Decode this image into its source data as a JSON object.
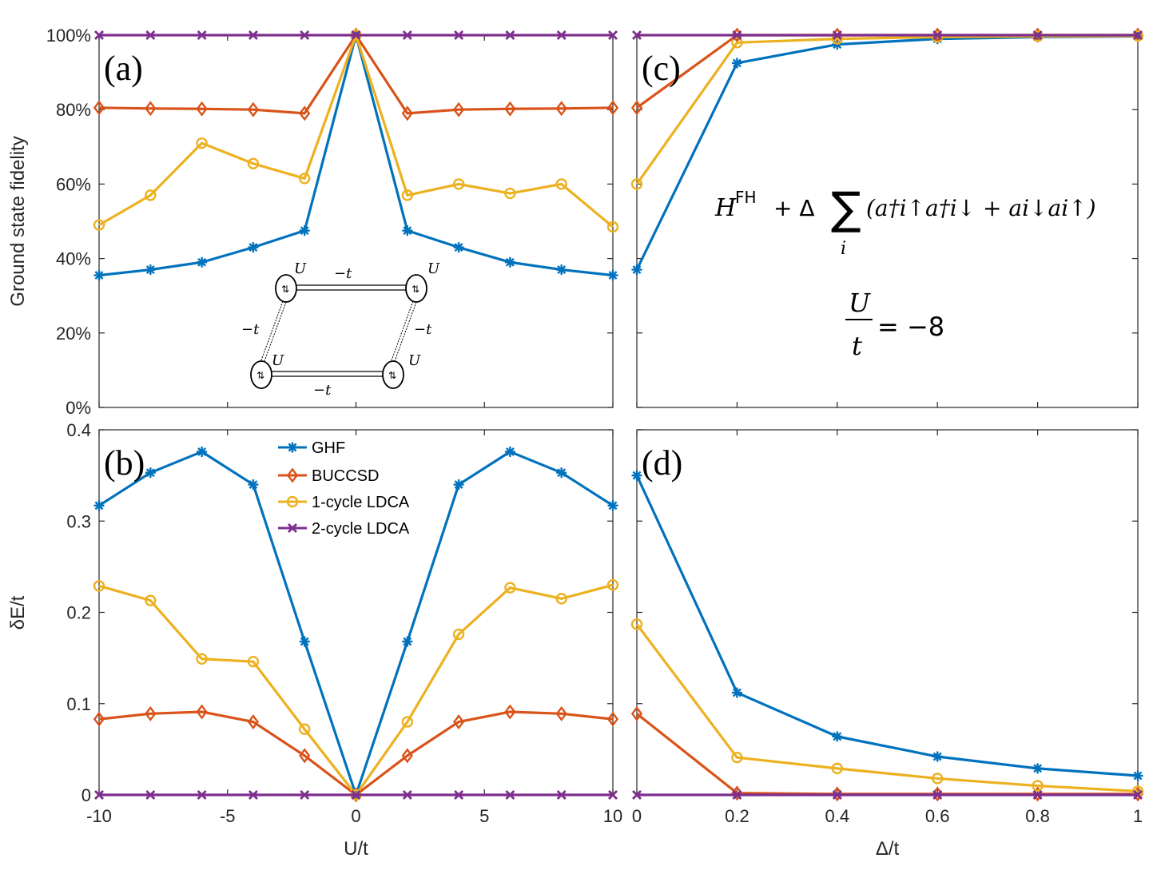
{
  "figure": {
    "colors": {
      "GHF": "#0072BD",
      "BUCCSD": "#D95319",
      "1-cycle LDCA": "#EDB120",
      "2-cycle LDCA": "#7E2F8E"
    },
    "legend": [
      "GHF",
      "BUCCSD",
      "1-cycle LDCA",
      "2-cycle LDCA"
    ],
    "inset": {
      "U": "U",
      "hop": "−t",
      "spin_glyph": "⇅"
    },
    "formula": {
      "H": "H",
      "FH": "FH",
      "plus_delta": "+ Δ",
      "sum": "∑",
      "index": "i",
      "pair": "(a†i↑a†i↓ + ai↓ai↑)",
      "frac_num": "U",
      "frac_den": "t",
      "frac_rhs": "= −8"
    }
  },
  "chart_data": [
    {
      "id": "a",
      "type": "line",
      "panel_label": "(a)",
      "ylabel": "Ground state fidelity",
      "xlabel": "",
      "x": [
        -10,
        -8,
        -6,
        -4,
        -2,
        0,
        2,
        4,
        6,
        8,
        10
      ],
      "xlim": [
        -10,
        10
      ],
      "ylim": [
        0,
        1
      ],
      "yticks": [
        0,
        0.2,
        0.4,
        0.6,
        0.8,
        1.0
      ],
      "yticklabels": [
        "0%",
        "20%",
        "40%",
        "60%",
        "80%",
        "100%"
      ],
      "xticks": [
        -10,
        -5,
        0,
        5,
        10
      ],
      "xticklabels": [
        "",
        "",
        "",
        "",
        ""
      ],
      "series": [
        {
          "name": "GHF",
          "values": [
            0.355,
            0.37,
            0.39,
            0.43,
            0.475,
            1.0,
            0.475,
            0.43,
            0.39,
            0.37,
            0.355
          ]
        },
        {
          "name": "BUCCSD",
          "values": [
            0.805,
            0.803,
            0.802,
            0.8,
            0.79,
            1.0,
            0.79,
            0.8,
            0.802,
            0.803,
            0.805
          ]
        },
        {
          "name": "1-cycle LDCA",
          "values": [
            0.49,
            0.57,
            0.71,
            0.655,
            0.615,
            1.0,
            0.57,
            0.6,
            0.575,
            0.6,
            0.485
          ]
        },
        {
          "name": "2-cycle LDCA",
          "values": [
            1.0,
            1.0,
            1.0,
            1.0,
            1.0,
            1.0,
            1.0,
            1.0,
            1.0,
            1.0,
            1.0
          ]
        }
      ]
    },
    {
      "id": "b",
      "type": "line",
      "panel_label": "(b)",
      "ylabel": "δE/t",
      "xlabel": "U/t",
      "x": [
        -10,
        -8,
        -6,
        -4,
        -2,
        0,
        2,
        4,
        6,
        8,
        10
      ],
      "xlim": [
        -10,
        10
      ],
      "ylim": [
        0,
        0.4
      ],
      "yticks": [
        0,
        0.1,
        0.2,
        0.3,
        0.4
      ],
      "yticklabels": [
        "0",
        "0.1",
        "0.2",
        "0.3",
        "0.4"
      ],
      "xticks": [
        -10,
        -5,
        0,
        5,
        10
      ],
      "xticklabels": [
        "-10",
        "-5",
        "0",
        "5",
        "10"
      ],
      "series": [
        {
          "name": "GHF",
          "values": [
            0.317,
            0.353,
            0.376,
            0.34,
            0.168,
            0.0,
            0.168,
            0.34,
            0.376,
            0.353,
            0.317
          ]
        },
        {
          "name": "BUCCSD",
          "values": [
            0.083,
            0.089,
            0.091,
            0.08,
            0.043,
            0.0,
            0.043,
            0.08,
            0.091,
            0.089,
            0.083
          ]
        },
        {
          "name": "1-cycle LDCA",
          "values": [
            0.229,
            0.213,
            0.149,
            0.146,
            0.072,
            0.0,
            0.08,
            0.176,
            0.227,
            0.215,
            0.23
          ]
        },
        {
          "name": "2-cycle LDCA",
          "values": [
            0,
            0,
            0,
            0,
            0,
            0,
            0,
            0,
            0,
            0,
            0
          ]
        }
      ]
    },
    {
      "id": "c",
      "type": "line",
      "panel_label": "(c)",
      "ylabel": "",
      "xlabel": "",
      "x": [
        0,
        0.2,
        0.4,
        0.6,
        0.8,
        1.0
      ],
      "xlim": [
        0,
        1
      ],
      "ylim": [
        0,
        1
      ],
      "yticks": [
        0,
        0.2,
        0.4,
        0.6,
        0.8,
        1.0
      ],
      "yticklabels": [
        "",
        "",
        "",
        "",
        "",
        ""
      ],
      "xticks": [
        0,
        0.2,
        0.4,
        0.6,
        0.8,
        1.0
      ],
      "xticklabels": [
        "",
        "",
        "",
        "",
        "",
        ""
      ],
      "series": [
        {
          "name": "GHF",
          "values": [
            0.37,
            0.925,
            0.975,
            0.99,
            0.995,
            0.997
          ]
        },
        {
          "name": "BUCCSD",
          "values": [
            0.805,
            1.0,
            1.0,
            1.0,
            1.0,
            1.0
          ]
        },
        {
          "name": "1-cycle LDCA",
          "values": [
            0.6,
            0.98,
            0.99,
            0.995,
            0.997,
            0.998
          ]
        },
        {
          "name": "2-cycle LDCA",
          "values": [
            1.0,
            1.0,
            1.0,
            1.0,
            1.0,
            1.0
          ]
        }
      ]
    },
    {
      "id": "d",
      "type": "line",
      "panel_label": "(d)",
      "ylabel": "",
      "xlabel": "Δ/t",
      "x": [
        0,
        0.2,
        0.4,
        0.6,
        0.8,
        1.0
      ],
      "xlim": [
        0,
        1
      ],
      "ylim": [
        0,
        0.4
      ],
      "yticks": [
        0,
        0.1,
        0.2,
        0.3,
        0.4
      ],
      "yticklabels": [
        "",
        "",
        "",
        "",
        ""
      ],
      "xticks": [
        0,
        0.2,
        0.4,
        0.6,
        0.8,
        1.0
      ],
      "xticklabels": [
        "0",
        "0.2",
        "0.4",
        "0.6",
        "0.8",
        "1"
      ],
      "series": [
        {
          "name": "GHF",
          "values": [
            0.35,
            0.112,
            0.064,
            0.042,
            0.029,
            0.021
          ]
        },
        {
          "name": "BUCCSD",
          "values": [
            0.089,
            0.002,
            0.001,
            0.001,
            0.001,
            0.001
          ]
        },
        {
          "name": "1-cycle LDCA",
          "values": [
            0.187,
            0.041,
            0.029,
            0.018,
            0.01,
            0.004
          ]
        },
        {
          "name": "2-cycle LDCA",
          "values": [
            0,
            0,
            0,
            0,
            0,
            0
          ]
        }
      ]
    }
  ]
}
